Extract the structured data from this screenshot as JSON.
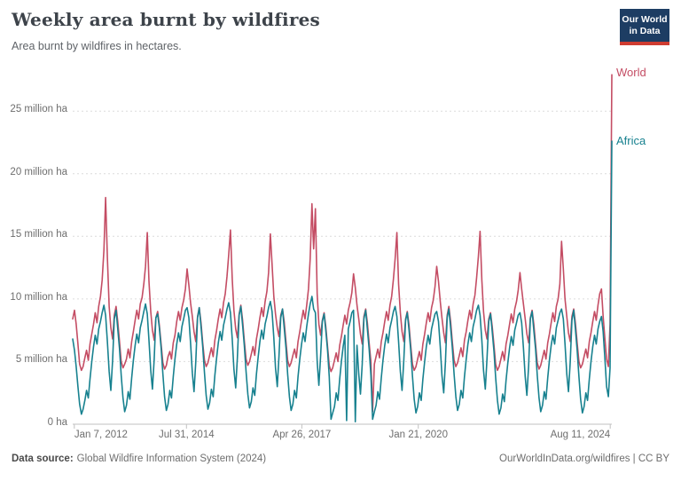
{
  "header": {
    "title": "Weekly area burnt by wildfires",
    "subtitle": "Area burnt by wildfires in hectares.",
    "logo": {
      "line1": "Our World",
      "line2": "in Data",
      "bg_color": "#1d3d63",
      "stripe_color": "#cf3c31"
    }
  },
  "chart_data": {
    "type": "line",
    "title": "Weekly area burnt by wildfires",
    "subtitle": "Area burnt by wildfires in hectares.",
    "unit": "million hectares per week",
    "grid": true,
    "ylim": [
      0,
      28.2
    ],
    "x_sampling": "semi-monthly estimates (2 points per month), Jan 2012 - Dec 2024; final point is the end-of-series spike",
    "y_ticks": [
      {
        "value": 0,
        "label": "0 ha"
      },
      {
        "value": 5,
        "label": "5 million ha"
      },
      {
        "value": 10,
        "label": "10 million ha"
      },
      {
        "value": 15,
        "label": "15 million ha"
      },
      {
        "value": 20,
        "label": "20 million ha"
      },
      {
        "value": 25,
        "label": "25 million ha"
      }
    ],
    "x_ticks": [
      {
        "label": "Jan 7, 2012",
        "f": 0.003,
        "align": "left"
      },
      {
        "label": "Jul 31, 2014",
        "f": 0.211,
        "align": "center"
      },
      {
        "label": "Apr 26, 2017",
        "f": 0.425,
        "align": "center"
      },
      {
        "label": "Jan 21, 2020",
        "f": 0.641,
        "align": "center"
      },
      {
        "label": "Aug 11, 2024",
        "f": 0.997,
        "align": "right"
      }
    ],
    "series": [
      {
        "name": "World",
        "color": "#c44d64",
        "values": [
          [
            8.4,
            9.1,
            8.0,
            6.4,
            4.8,
            4.3,
            4.6,
            5.3,
            5.9,
            5.1,
            6.4,
            7.2,
            8.0,
            8.9,
            8.1,
            9.4,
            10.2,
            11.5,
            13.9,
            18.1,
            13.3,
            9.4,
            7.7,
            6.8
          ],
          [
            8.7,
            9.4,
            8.2,
            6.6,
            5.0,
            4.5,
            4.8,
            5.2,
            6.0,
            5.3,
            6.6,
            7.4,
            8.3,
            9.1,
            8.4,
            9.6,
            10.1,
            11.2,
            12.6,
            15.3,
            11.4,
            9.0,
            7.5,
            6.7
          ],
          [
            8.5,
            9.0,
            7.9,
            6.4,
            4.9,
            4.4,
            4.7,
            5.4,
            5.8,
            5.2,
            6.5,
            7.1,
            8.2,
            9.0,
            8.3,
            9.3,
            9.9,
            10.8,
            12.4,
            11.1,
            9.7,
            8.6,
            7.4,
            6.6
          ],
          [
            8.6,
            9.3,
            8.1,
            6.5,
            5.1,
            4.6,
            4.9,
            5.5,
            6.1,
            5.4,
            6.7,
            7.5,
            8.4,
            9.2,
            8.5,
            9.7,
            10.4,
            11.8,
            13.5,
            15.5,
            11.6,
            9.1,
            7.6,
            6.9
          ],
          [
            8.8,
            9.5,
            8.3,
            6.7,
            5.2,
            4.7,
            5.0,
            5.6,
            6.2,
            5.5,
            6.8,
            7.6,
            8.5,
            9.3,
            8.6,
            9.8,
            10.6,
            12.1,
            15.2,
            12.8,
            10.2,
            8.8,
            7.7,
            7.0
          ],
          [
            8.7,
            9.2,
            8.2,
            6.6,
            5.1,
            4.6,
            4.9,
            5.5,
            6.0,
            5.3,
            6.6,
            7.4,
            8.3,
            9.1,
            8.4,
            9.5,
            10.8,
            13.2,
            17.6,
            14.0,
            17.2,
            10.4,
            8.0,
            7.1
          ],
          [
            8.3,
            8.9,
            7.8,
            6.2,
            4.7,
            4.2,
            4.5,
            5.1,
            5.7,
            5.0,
            6.3,
            7.0,
            7.9,
            8.7,
            8.0,
            9.1,
            9.7,
            10.5,
            12.0,
            10.9,
            9.5,
            8.4,
            7.2,
            6.4
          ],
          [
            8.6,
            9.2,
            8.1,
            6.5,
            5.0,
            1.0,
            4.8,
            5.4,
            6.0,
            5.3,
            6.6,
            7.3,
            8.2,
            9.0,
            8.3,
            9.5,
            10.2,
            11.6,
            13.2,
            15.3,
            11.2,
            8.9,
            7.4,
            6.6
          ],
          [
            8.4,
            9.0,
            7.9,
            6.3,
            4.8,
            4.3,
            4.6,
            5.2,
            5.8,
            5.1,
            6.4,
            7.2,
            8.1,
            8.9,
            8.2,
            9.3,
            9.9,
            11.0,
            12.6,
            11.4,
            9.8,
            8.5,
            7.3,
            6.5
          ],
          [
            8.7,
            9.4,
            8.2,
            6.6,
            5.1,
            4.6,
            4.9,
            5.5,
            6.1,
            5.4,
            6.7,
            7.4,
            8.3,
            9.1,
            8.4,
            9.6,
            10.3,
            11.7,
            13.4,
            15.4,
            11.5,
            9.0,
            7.5,
            6.8
          ],
          [
            8.4,
            8.9,
            7.8,
            6.3,
            4.8,
            4.3,
            4.6,
            5.2,
            5.8,
            5.1,
            6.4,
            7.1,
            8.0,
            8.8,
            8.1,
            9.2,
            9.8,
            10.7,
            12.1,
            10.8,
            9.6,
            8.4,
            7.2,
            6.5
          ],
          [
            8.5,
            9.1,
            8.0,
            6.4,
            4.9,
            4.4,
            4.7,
            5.3,
            5.9,
            5.2,
            6.5,
            7.2,
            8.1,
            8.9,
            8.2,
            9.4,
            10.0,
            11.2,
            14.6,
            12.4,
            10.0,
            8.6,
            7.3,
            6.6
          ],
          [
            8.6,
            9.2,
            8.1,
            6.5,
            5.0,
            4.5,
            4.8,
            5.4,
            6.0,
            5.3,
            6.6,
            7.3,
            8.2,
            9.0,
            8.3,
            9.5,
            10.4,
            10.8,
            8.6,
            6.8,
            5.2,
            4.6,
            8.0,
            27.9
          ]
        ]
      },
      {
        "name": "Africa",
        "color": "#17818f",
        "values": [
          [
            6.8,
            5.9,
            4.6,
            3.0,
            1.6,
            0.8,
            1.2,
            1.9,
            2.7,
            2.1,
            3.6,
            5.0,
            6.2,
            7.1,
            6.4,
            7.6,
            8.2,
            8.9,
            9.5,
            8.7,
            6.6,
            4.2,
            2.7,
            5.1
          ],
          [
            8.4,
            9.1,
            7.6,
            6.0,
            3.9,
            2.1,
            1.0,
            1.5,
            2.6,
            2.0,
            3.7,
            5.1,
            6.3,
            7.2,
            6.5,
            7.7,
            8.3,
            9.0,
            9.6,
            8.8,
            6.7,
            4.3,
            2.8,
            5.2
          ],
          [
            8.5,
            8.8,
            7.7,
            6.1,
            4.0,
            2.2,
            1.1,
            1.6,
            2.7,
            2.1,
            3.8,
            5.2,
            6.4,
            7.3,
            6.6,
            7.8,
            8.4,
            9.1,
            9.3,
            8.5,
            6.5,
            4.1,
            2.6,
            5.0
          ],
          [
            8.5,
            9.3,
            7.8,
            6.2,
            4.1,
            2.3,
            1.2,
            1.7,
            2.8,
            2.2,
            3.9,
            5.3,
            6.5,
            7.4,
            6.7,
            7.9,
            8.5,
            9.2,
            9.7,
            8.9,
            6.8,
            4.4,
            2.9,
            5.3
          ],
          [
            8.7,
            9.4,
            7.9,
            6.3,
            4.2,
            2.4,
            1.3,
            1.8,
            2.9,
            2.3,
            4.0,
            5.4,
            6.6,
            7.5,
            6.8,
            8.0,
            8.6,
            9.3,
            9.8,
            9.0,
            6.9,
            4.5,
            3.0,
            5.4
          ],
          [
            8.5,
            9.2,
            7.7,
            6.1,
            4.0,
            2.2,
            1.1,
            1.6,
            2.7,
            2.1,
            3.8,
            5.2,
            6.4,
            7.3,
            6.6,
            7.8,
            8.8,
            9.6,
            10.2,
            9.2,
            8.9,
            5.0,
            3.1,
            5.5
          ],
          [
            8.2,
            8.8,
            7.5,
            5.9,
            3.8,
            0.4,
            0.9,
            1.4,
            2.5,
            1.9,
            3.6,
            5.0,
            6.2,
            7.1,
            0.3,
            7.6,
            8.2,
            8.9,
            9.1,
            0.2,
            6.3,
            4.0,
            2.4,
            4.8
          ],
          [
            8.4,
            9.1,
            7.6,
            6.0,
            3.9,
            0.4,
            1.0,
            1.5,
            2.6,
            2.0,
            3.7,
            5.1,
            6.3,
            7.2,
            6.5,
            7.7,
            8.3,
            9.0,
            9.4,
            8.6,
            6.6,
            4.2,
            2.7,
            5.1
          ],
          [
            8.3,
            8.9,
            7.5,
            5.9,
            3.8,
            2.0,
            0.9,
            1.4,
            2.5,
            1.9,
            3.6,
            5.0,
            6.2,
            7.1,
            6.4,
            7.6,
            8.2,
            8.8,
            9.0,
            8.2,
            6.2,
            3.9,
            2.5,
            4.9
          ],
          [
            8.5,
            9.2,
            7.7,
            6.1,
            4.0,
            2.2,
            1.1,
            1.6,
            2.7,
            2.1,
            3.8,
            5.2,
            6.4,
            7.3,
            6.6,
            7.8,
            8.4,
            9.1,
            9.5,
            8.7,
            6.7,
            4.3,
            2.8,
            5.2
          ],
          [
            8.2,
            8.8,
            7.4,
            5.8,
            3.7,
            1.9,
            0.8,
            1.3,
            2.4,
            1.8,
            3.5,
            4.9,
            6.1,
            7.0,
            6.3,
            7.5,
            8.1,
            8.7,
            8.9,
            8.1,
            6.1,
            3.8,
            2.3,
            4.7
          ],
          [
            8.4,
            9.0,
            7.5,
            6.0,
            3.9,
            2.1,
            1.0,
            1.5,
            2.6,
            2.0,
            3.7,
            5.1,
            6.3,
            7.1,
            6.4,
            7.7,
            8.3,
            8.9,
            9.2,
            8.4,
            6.4,
            4.0,
            2.6,
            5.0
          ],
          [
            8.3,
            9.1,
            7.6,
            5.9,
            3.8,
            2.0,
            0.9,
            1.4,
            2.5,
            1.9,
            3.6,
            5.0,
            6.2,
            7.1,
            6.4,
            7.6,
            8.2,
            8.6,
            7.4,
            5.2,
            3.0,
            2.2,
            4.5,
            22.6
          ]
        ]
      }
    ],
    "annotations": {
      "end_spike": {
        "World": 27.9,
        "Africa": 22.6,
        "note": "sharp spike at final data point"
      }
    },
    "colors": {
      "grid": "#dcdcdc",
      "axis": "#c2c2c2",
      "tick_text": "#6e6e6e"
    }
  },
  "footer": {
    "source_label": "Data source:",
    "source": "Global Wildfire Information System (2024)",
    "right": "OurWorldInData.org/wildfires | CC BY"
  }
}
